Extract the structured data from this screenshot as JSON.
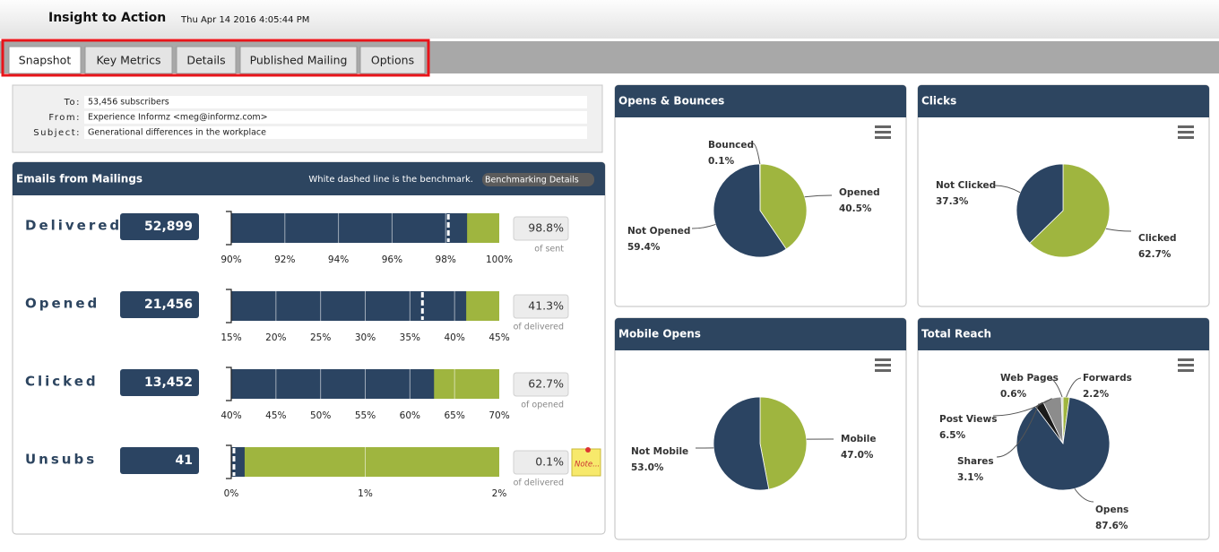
{
  "header": {
    "title": "Insight to Action",
    "timestamp": "Thu Apr 14 2016 4:05:44 PM"
  },
  "tabs": [
    "Snapshot",
    "Key Metrics",
    "Details",
    "Published Mailing",
    "Options"
  ],
  "email": {
    "fields": [
      {
        "label": "To:",
        "value": "53,456 subscribers"
      },
      {
        "label": "From:",
        "value": "Experience Informz <meg@informz.com>"
      },
      {
        "label": "Subject:",
        "value": "Generational differences in the workplace"
      }
    ]
  },
  "mailings": {
    "title": "Emails from Mailings",
    "benchmark_note": "White dashed line is the benchmark.",
    "button": "Benchmarking Details",
    "rows": [
      {
        "label": "Delivered",
        "count": "52,899",
        "value": 98.8,
        "value_label": "98.8%",
        "benchmark": 98.1,
        "basis": "of sent",
        "xlim": [
          90,
          100
        ],
        "xticks": [
          {
            "value": 90,
            "label": "90%"
          },
          {
            "value": 92,
            "label": "92%"
          },
          {
            "value": 94,
            "label": "94%"
          },
          {
            "value": 96,
            "label": "96%"
          },
          {
            "value": 98,
            "label": "98%"
          },
          {
            "value": 100,
            "label": "100%"
          }
        ]
      },
      {
        "label": "Opened",
        "count": "21,456",
        "value": 41.3,
        "value_label": "41.3%",
        "benchmark": 36.4,
        "basis": "of delivered",
        "xlim": [
          15,
          45
        ],
        "xticks": [
          {
            "value": 15,
            "label": "15%"
          },
          {
            "value": 20,
            "label": "20%"
          },
          {
            "value": 25,
            "label": "25%"
          },
          {
            "value": 30,
            "label": "30%"
          },
          {
            "value": 35,
            "label": "35%"
          },
          {
            "value": 40,
            "label": "40%"
          },
          {
            "value": 45,
            "label": "45%"
          }
        ]
      },
      {
        "label": "Clicked",
        "count": "13,452",
        "value": 62.7,
        "value_label": "62.7%",
        "basis": "of opened",
        "xlim": [
          40,
          70
        ],
        "xticks": [
          {
            "value": 40,
            "label": "40%"
          },
          {
            "value": 45,
            "label": "45%"
          },
          {
            "value": 50,
            "label": "50%"
          },
          {
            "value": 55,
            "label": "55%"
          },
          {
            "value": 60,
            "label": "60%"
          },
          {
            "value": 65,
            "label": "65%"
          },
          {
            "value": 70,
            "label": "70%"
          }
        ]
      },
      {
        "label": "Unsubs",
        "count": "41",
        "value": 0.1,
        "value_label": "0.1%",
        "benchmark": 0.02,
        "basis": "of delivered",
        "note": "Note...",
        "xlim": [
          0,
          2
        ],
        "xticks": [
          {
            "value": 0,
            "label": "0%"
          },
          {
            "value": 1,
            "label": "1%"
          },
          {
            "value": 2,
            "label": "2%"
          }
        ]
      }
    ]
  },
  "pies": [
    {
      "type": "pie",
      "title": "Opens & Bounces",
      "categories": [
        "Opened",
        "Not Opened",
        "Bounced"
      ],
      "values": [
        40.5,
        59.4,
        0.1
      ],
      "value_labels": [
        "40.5%",
        "59.4%",
        "0.1%"
      ],
      "colors": [
        "#9fb53f",
        "#2b4462",
        "#7a7a7a"
      ]
    },
    {
      "type": "pie",
      "title": "Clicks",
      "categories": [
        "Clicked",
        "Not Clicked"
      ],
      "values": [
        62.7,
        37.3
      ],
      "value_labels": [
        "62.7%",
        "37.3%"
      ],
      "colors": [
        "#9fb53f",
        "#2b4462"
      ]
    },
    {
      "type": "pie",
      "title": "Mobile Opens",
      "categories": [
        "Mobile",
        "Not Mobile"
      ],
      "values": [
        47.0,
        53.0
      ],
      "value_labels": [
        "47.0%",
        "53.0%"
      ],
      "colors": [
        "#9fb53f",
        "#2b4462"
      ]
    },
    {
      "type": "pie",
      "title": "Total Reach",
      "categories": [
        "Forwards",
        "Opens",
        "Shares",
        "Post Views",
        "Web Pages"
      ],
      "values": [
        2.2,
        87.6,
        3.1,
        6.5,
        0.6
      ],
      "value_labels": [
        "2.2%",
        "87.6%",
        "3.1%",
        "6.5%",
        "0.6%"
      ],
      "colors": [
        "#9fb53f",
        "#2b4462",
        "#1a1a1a",
        "#8c8c8c",
        "#d0d0d0"
      ]
    }
  ]
}
